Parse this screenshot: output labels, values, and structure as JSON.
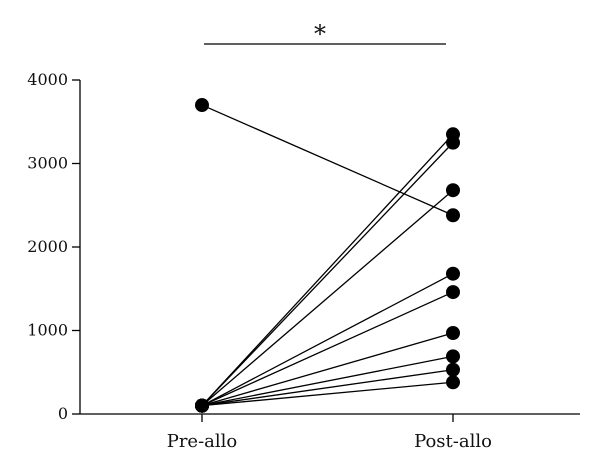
{
  "chart_data": {
    "type": "line",
    "title": "",
    "xlabel": "",
    "ylabel": "",
    "categories": [
      "Pre-allo",
      "Post-allo"
    ],
    "ylim": [
      0,
      4000
    ],
    "y_ticks": [
      0,
      1000,
      2000,
      3000,
      4000
    ],
    "grid": false,
    "significance": {
      "between": [
        "Pre-allo",
        "Post-allo"
      ],
      "label": "*"
    },
    "series": [
      {
        "values": [
          3700,
          2380
        ]
      },
      {
        "values": [
          100,
          3350
        ]
      },
      {
        "values": [
          100,
          3250
        ]
      },
      {
        "values": [
          100,
          2680
        ]
      },
      {
        "values": [
          100,
          1680
        ]
      },
      {
        "values": [
          100,
          1460
        ]
      },
      {
        "values": [
          100,
          970
        ]
      },
      {
        "values": [
          100,
          690
        ]
      },
      {
        "values": [
          100,
          530
        ]
      },
      {
        "values": [
          100,
          380
        ]
      }
    ],
    "colors": {
      "marker": "#000000",
      "line": "#000000",
      "axis": "#000000"
    }
  }
}
